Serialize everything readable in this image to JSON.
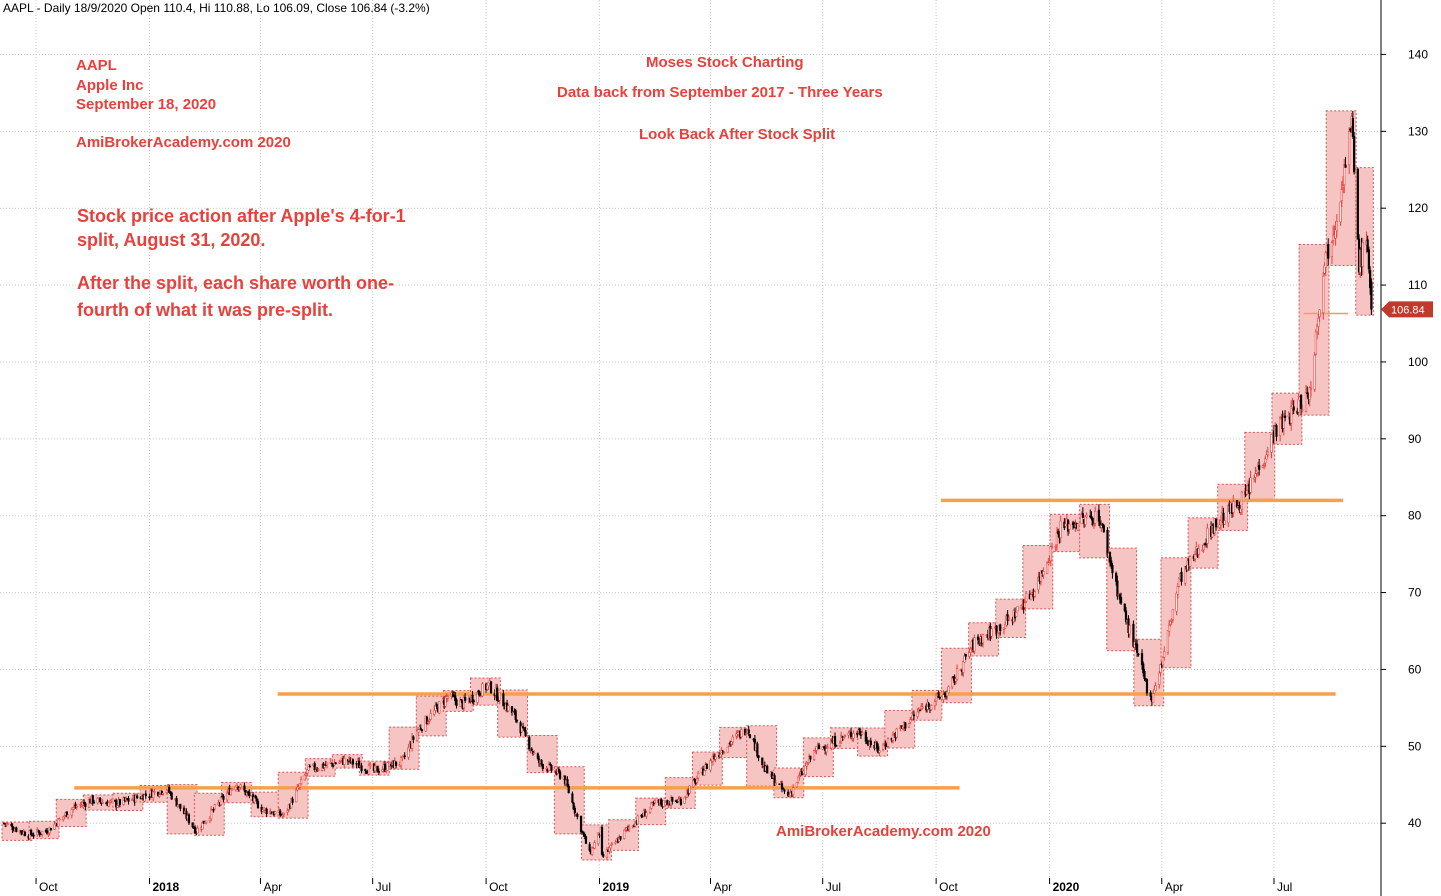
{
  "header": "AAPL - Daily 18/9/2020 Open 110.4, Hi 110.88, Lo 106.09, Close 106.84 (-3.2%)",
  "notes_left": [
    "AAPL",
    "Apple Inc",
    "September 18, 2020",
    "AmiBrokerAcademy.com  2020"
  ],
  "notes_center": [
    "Moses Stock Charting",
    "Data back from September 2017 - Three Years",
    "Look Back After Stock Split"
  ],
  "notes_big": [
    "Stock price action after Apple's 4-for-1",
    "split, August 31, 2020.",
    "After the split, each share worth one-",
    "fourth of what it was pre-split."
  ],
  "watermark": "AmiBrokerAcademy.com  2020",
  "last_price_label": "106.84",
  "colors": {
    "up": "#e8413c",
    "down": "#000000",
    "box_fill": "#f7c4c4",
    "box_border": "#d9534f",
    "hline": "#f6a04d",
    "grid": "#c8c8c8",
    "price_tag": "#c0392b"
  },
  "chart_data": {
    "type": "candlestick",
    "ylim": [
      33,
      145
    ],
    "x_range": [
      "2017-09-05",
      "2020-09-25"
    ],
    "y_ticks": [
      40,
      50,
      60,
      70,
      80,
      90,
      100,
      110,
      120,
      130,
      140
    ],
    "x_ticks": [
      {
        "date": "2017-10-01",
        "label": "Oct",
        "bold": false
      },
      {
        "date": "2018-01-01",
        "label": "2018",
        "bold": true
      },
      {
        "date": "2018-04-01",
        "label": "Apr",
        "bold": false
      },
      {
        "date": "2018-07-01",
        "label": "Jul",
        "bold": false
      },
      {
        "date": "2018-10-01",
        "label": "Oct",
        "bold": false
      },
      {
        "date": "2019-01-01",
        "label": "2019",
        "bold": true
      },
      {
        "date": "2019-04-01",
        "label": "Apr",
        "bold": false
      },
      {
        "date": "2019-07-01",
        "label": "Jul",
        "bold": false
      },
      {
        "date": "2019-10-01",
        "label": "Oct",
        "bold": false
      },
      {
        "date": "2020-01-01",
        "label": "2020",
        "bold": true
      },
      {
        "date": "2020-04-01",
        "label": "Apr",
        "bold": false
      },
      {
        "date": "2020-07-01",
        "label": "Jul",
        "bold": false
      }
    ],
    "anchors": [
      [
        "2017-09-05",
        40.0
      ],
      [
        "2017-09-25",
        38.5
      ],
      [
        "2017-10-10",
        39.0
      ],
      [
        "2017-10-31",
        42.0
      ],
      [
        "2017-11-15",
        43.0
      ],
      [
        "2017-12-05",
        42.5
      ],
      [
        "2018-01-15",
        44.5
      ],
      [
        "2018-02-08",
        39.0
      ],
      [
        "2018-03-12",
        45.2
      ],
      [
        "2018-04-03",
        41.8
      ],
      [
        "2018-04-20",
        41.0
      ],
      [
        "2018-05-10",
        47.0
      ],
      [
        "2018-06-10",
        48.2
      ],
      [
        "2018-07-02",
        46.8
      ],
      [
        "2018-07-25",
        48.0
      ],
      [
        "2018-08-06",
        52.0
      ],
      [
        "2018-08-31",
        56.5
      ],
      [
        "2018-09-12",
        55.5
      ],
      [
        "2018-10-03",
        58.0
      ],
      [
        "2018-10-24",
        54.0
      ],
      [
        "2018-11-12",
        48.0
      ],
      [
        "2018-12-03",
        46.0
      ],
      [
        "2018-12-24",
        36.0
      ],
      [
        "2019-01-02",
        39.0
      ],
      [
        "2019-01-03",
        35.5
      ],
      [
        "2019-01-25",
        39.5
      ],
      [
        "2019-02-15",
        42.5
      ],
      [
        "2019-03-08",
        43.0
      ],
      [
        "2019-04-03",
        48.5
      ],
      [
        "2019-05-01",
        52.5
      ],
      [
        "2019-05-15",
        47.0
      ],
      [
        "2019-06-03",
        43.5
      ],
      [
        "2019-06-25",
        49.5
      ],
      [
        "2019-07-30",
        52.0
      ],
      [
        "2019-08-15",
        49.5
      ],
      [
        "2019-09-20",
        55.0
      ],
      [
        "2019-10-10",
        57.0
      ],
      [
        "2019-11-01",
        63.5
      ],
      [
        "2019-11-30",
        66.5
      ],
      [
        "2019-12-20",
        70.5
      ],
      [
        "2020-01-10",
        78.5
      ],
      [
        "2020-02-10",
        80.0
      ],
      [
        "2020-02-28",
        68.5
      ],
      [
        "2020-03-12",
        62.0
      ],
      [
        "2020-03-23",
        56.0
      ],
      [
        "2020-04-02",
        61.5
      ],
      [
        "2020-04-15",
        71.5
      ],
      [
        "2020-05-12",
        78.5
      ],
      [
        "2020-06-08",
        82.5
      ],
      [
        "2020-07-02",
        91.0
      ],
      [
        "2020-07-30",
        96.0
      ],
      [
        "2020-08-10",
        112.5
      ],
      [
        "2020-08-20",
        118.5
      ],
      [
        "2020-08-31",
        129.0
      ],
      [
        "2020-09-02",
        131.0
      ],
      [
        "2020-09-08",
        113.0
      ],
      [
        "2020-09-15",
        115.5
      ],
      [
        "2020-09-18",
        106.84
      ]
    ],
    "hlines": [
      {
        "y": 44.6,
        "x0": "2017-11-01",
        "x1": "2019-10-20"
      },
      {
        "y": 56.8,
        "x0": "2018-04-15",
        "x1": "2020-08-20"
      },
      {
        "y": 82.0,
        "x0": "2019-10-05",
        "x1": "2020-08-26"
      },
      {
        "y": 106.3,
        "x0": "2020-07-25",
        "x1": "2020-10-10"
      }
    ],
    "last_price": 106.84
  }
}
